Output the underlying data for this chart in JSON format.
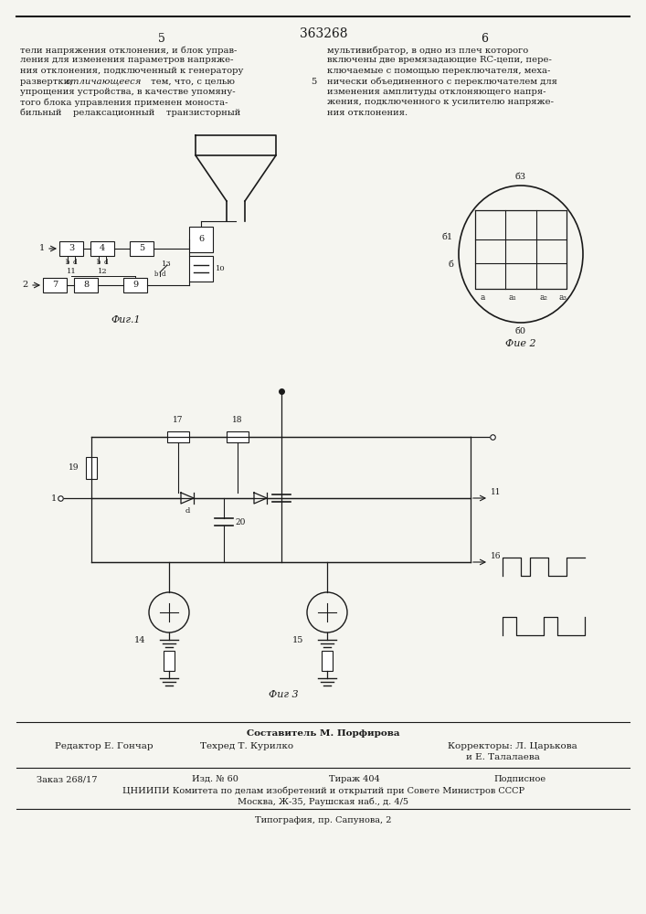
{
  "title": "363268",
  "page_left": "5",
  "page_right": "6",
  "bg_color": "#f5f5f0",
  "text_color": "#1a1a1a",
  "line_color": "#1a1a1a",
  "fig1_label": "Фиг.1",
  "fig2_label": "Фие 2",
  "fig3_label": "Фиг 3",
  "footer_sestavitel": "Составитель М. Порфирова",
  "footer_editor": "Редактор Е. Гончар",
  "footer_tekhred": "Техред Т. Курилко",
  "footer_korr1": "Корректоры: Л. Царькова",
  "footer_korr2": "и Е. Талалаева",
  "footer_zakaz": "Заказ 268/17",
  "footer_izd": "Изд. № 60",
  "footer_tirazh": "Тираж 404",
  "footer_podpisnoe": "Подписное",
  "footer_tsniipi": "ЦНИИПИ Комитета по делам изобретений и открытий при Совете Министров СССР",
  "footer_moskva": "Москва, Ж-35, Раушская наб., д. 4/5",
  "footer_tipografia": "Типография, пр. Сапунова, 2"
}
